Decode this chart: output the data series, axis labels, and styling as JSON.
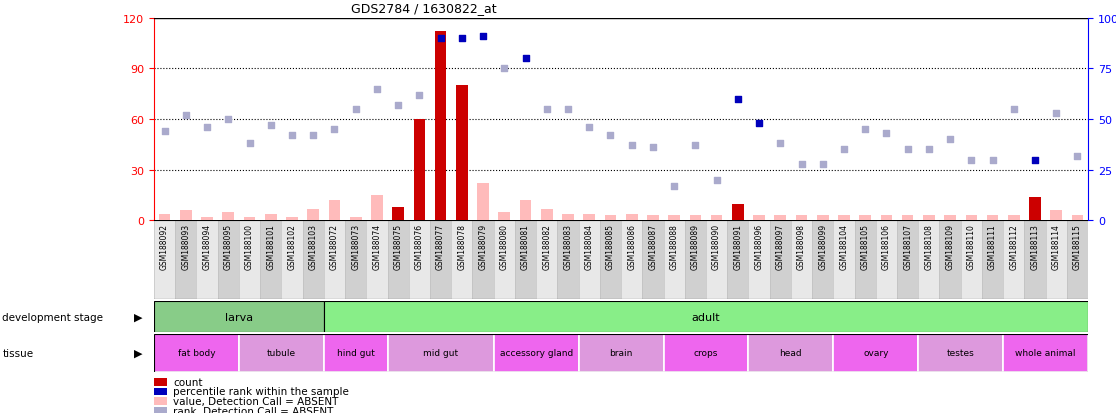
{
  "title": "GDS2784 / 1630822_at",
  "samples": [
    "GSM188092",
    "GSM188093",
    "GSM188094",
    "GSM188095",
    "GSM188100",
    "GSM188101",
    "GSM188102",
    "GSM188103",
    "GSM188072",
    "GSM188073",
    "GSM188074",
    "GSM188075",
    "GSM188076",
    "GSM188077",
    "GSM188078",
    "GSM188079",
    "GSM188080",
    "GSM188081",
    "GSM188082",
    "GSM188083",
    "GSM188084",
    "GSM188085",
    "GSM188086",
    "GSM188087",
    "GSM188088",
    "GSM188089",
    "GSM188090",
    "GSM188091",
    "GSM188096",
    "GSM188097",
    "GSM188098",
    "GSM188099",
    "GSM188104",
    "GSM188105",
    "GSM188106",
    "GSM188107",
    "GSM188108",
    "GSM188109",
    "GSM188110",
    "GSM188111",
    "GSM188112",
    "GSM188113",
    "GSM188114",
    "GSM188115"
  ],
  "count_values": [
    4,
    6,
    2,
    5,
    2,
    4,
    2,
    7,
    12,
    2,
    15,
    8,
    60,
    112,
    80,
    22,
    5,
    12,
    7,
    4,
    4,
    3,
    4,
    3,
    3,
    3,
    3,
    10,
    3,
    3,
    3,
    3,
    3,
    3,
    3,
    3,
    3,
    3,
    3,
    3,
    3,
    14,
    6,
    3
  ],
  "count_present": [
    false,
    false,
    false,
    false,
    false,
    false,
    false,
    false,
    false,
    false,
    false,
    true,
    true,
    true,
    true,
    false,
    false,
    false,
    false,
    false,
    false,
    false,
    false,
    false,
    false,
    false,
    false,
    true,
    false,
    false,
    false,
    false,
    false,
    false,
    false,
    false,
    false,
    false,
    false,
    false,
    false,
    true,
    false,
    false
  ],
  "rank_values": [
    44,
    52,
    46,
    50,
    38,
    47,
    42,
    42,
    45,
    55,
    65,
    57,
    62,
    90,
    90,
    91,
    75,
    80,
    55,
    55,
    46,
    42,
    37,
    36,
    17,
    37,
    20,
    60,
    48,
    38,
    28,
    28,
    35,
    45,
    43,
    35,
    35,
    40,
    30,
    30,
    55,
    30,
    53,
    32
  ],
  "rank_present": [
    false,
    false,
    false,
    false,
    false,
    false,
    false,
    false,
    false,
    false,
    false,
    false,
    false,
    true,
    true,
    true,
    false,
    true,
    false,
    false,
    false,
    false,
    false,
    false,
    false,
    false,
    false,
    true,
    true,
    false,
    false,
    false,
    false,
    false,
    false,
    false,
    false,
    false,
    false,
    false,
    false,
    true,
    false,
    false
  ],
  "dev_stage_groups": [
    {
      "label": "larva",
      "start": 0,
      "end": 8,
      "color": "#88dd88"
    },
    {
      "label": "adult",
      "start": 8,
      "end": 44,
      "color": "#88dd88"
    }
  ],
  "dev_stage_border": 8,
  "tissue_groups": [
    {
      "label": "fat body",
      "start": 0,
      "end": 4
    },
    {
      "label": "tubule",
      "start": 4,
      "end": 8
    },
    {
      "label": "hind gut",
      "start": 8,
      "end": 11
    },
    {
      "label": "mid gut",
      "start": 11,
      "end": 16
    },
    {
      "label": "accessory gland",
      "start": 16,
      "end": 20
    },
    {
      "label": "brain",
      "start": 20,
      "end": 24
    },
    {
      "label": "crops",
      "start": 24,
      "end": 28
    },
    {
      "label": "head",
      "start": 28,
      "end": 32
    },
    {
      "label": "ovary",
      "start": 32,
      "end": 36
    },
    {
      "label": "testes",
      "start": 36,
      "end": 40
    },
    {
      "label": "whole animal",
      "start": 40,
      "end": 44
    }
  ],
  "tissue_colors": [
    "#ee66ee",
    "#dd99dd"
  ],
  "ylim_left": [
    0,
    120
  ],
  "ylim_right": [
    0,
    100
  ],
  "yticks_left": [
    0,
    30,
    60,
    90,
    120
  ],
  "yticks_right": [
    0,
    25,
    50,
    75,
    100
  ],
  "bar_color_present": "#cc0000",
  "bar_color_absent": "#ffbbbb",
  "rank_color_present": "#0000bb",
  "rank_color_absent": "#aaaacc",
  "grid_lines": [
    30,
    60,
    90
  ],
  "legend_items": [
    {
      "label": "count",
      "color": "#cc0000"
    },
    {
      "label": "percentile rank within the sample",
      "color": "#0000bb"
    },
    {
      "label": "value, Detection Call = ABSENT",
      "color": "#ffbbbb"
    },
    {
      "label": "rank, Detection Call = ABSENT",
      "color": "#aaaacc"
    }
  ],
  "xtick_band_colors": [
    "#e8e8e8",
    "#d0d0d0"
  ]
}
